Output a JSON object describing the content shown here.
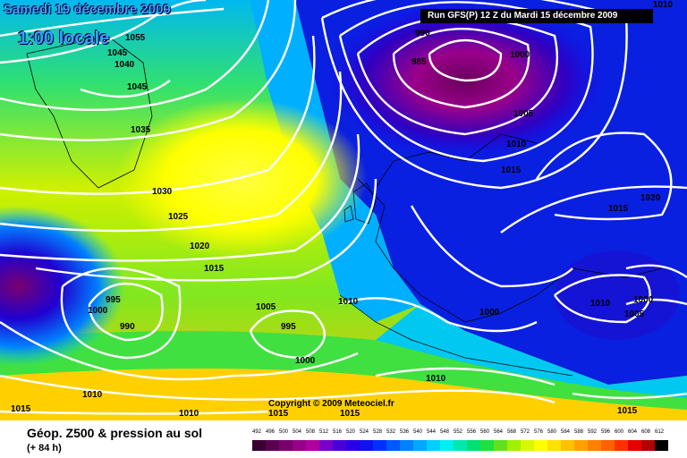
{
  "header": {
    "date_label": "Samedi 19 décembre 2009",
    "time_label": "1:00 locale",
    "run_label": "Run GFS(P) 12 Z du Mardi 15 décembre 2009",
    "corner_value": "1010"
  },
  "footer": {
    "copyright": "Copyright © 2009 Meteociel.fr",
    "product_title": "Géop. Z500 & pression au sol",
    "lead_time": "(+ 84 h)"
  },
  "isobar_labels": [
    {
      "text": "1055"
    },
    {
      "text": "1045"
    },
    {
      "text": "1040"
    },
    {
      "text": "1045"
    },
    {
      "text": "1035"
    },
    {
      "text": "1030"
    },
    {
      "text": "1025"
    },
    {
      "text": "1020"
    },
    {
      "text": "1015"
    },
    {
      "text": "995"
    },
    {
      "text": "1000"
    },
    {
      "text": "990"
    },
    {
      "text": "1005"
    },
    {
      "text": "995"
    },
    {
      "text": "1000"
    },
    {
      "text": "1010"
    },
    {
      "text": "1010"
    },
    {
      "text": "1010"
    },
    {
      "text": "1015"
    },
    {
      "text": "1015"
    },
    {
      "text": "1010"
    },
    {
      "text": "1015"
    },
    {
      "text": "990"
    },
    {
      "text": "985"
    },
    {
      "text": "1000"
    },
    {
      "text": "1005"
    },
    {
      "text": "1010"
    },
    {
      "text": "1015"
    },
    {
      "text": "1020"
    },
    {
      "text": "1015"
    },
    {
      "text": "1000"
    },
    {
      "text": "1010"
    },
    {
      "text": "1000"
    },
    {
      "text": "1005"
    },
    {
      "text": "1015"
    }
  ],
  "color_scale": {
    "labels": [
      "492",
      "496",
      "500",
      "504",
      "508",
      "512",
      "516",
      "520",
      "524",
      "528",
      "532",
      "536",
      "540",
      "544",
      "548",
      "552",
      "556",
      "560",
      "564",
      "568",
      "572",
      "576",
      "580",
      "584",
      "588",
      "592",
      "596",
      "600",
      "604",
      "608",
      "612"
    ],
    "colors": [
      "#3a0030",
      "#5a0050",
      "#7a006e",
      "#96008a",
      "#b000a0",
      "#7a00c8",
      "#4a00d8",
      "#2a00e8",
      "#1010f0",
      "#0030ff",
      "#0058ff",
      "#0080ff",
      "#00a8ff",
      "#00d0ff",
      "#00f0f0",
      "#00e8b0",
      "#00e070",
      "#20e040",
      "#60e020",
      "#a0f000",
      "#d8f800",
      "#ffff00",
      "#ffe000",
      "#ffc000",
      "#ffa000",
      "#ff8000",
      "#ff6000",
      "#ff3000",
      "#e80000",
      "#b00000",
      "#000000"
    ]
  }
}
